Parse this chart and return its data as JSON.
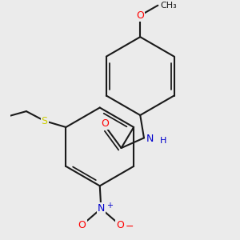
{
  "bg_color": "#ebebeb",
  "bond_color": "#1a1a1a",
  "bond_width": 1.5,
  "atom_colors": {
    "O": "#ff0000",
    "N": "#0000cc",
    "S": "#cccc00",
    "C": "#1a1a1a"
  },
  "font_size": 9,
  "dbo": 0.012
}
